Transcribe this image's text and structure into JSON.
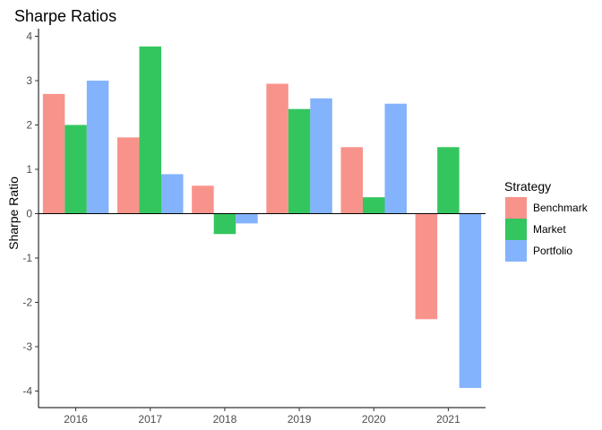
{
  "chart_data": {
    "type": "bar",
    "title": "Sharpe Ratios",
    "xlabel": "",
    "ylabel": "Sharpe Ratio",
    "categories": [
      "2016",
      "2017",
      "2018",
      "2019",
      "2020",
      "2021"
    ],
    "series": [
      {
        "name": "Benchmark",
        "color": "#F8938C",
        "values": [
          2.7,
          1.72,
          0.63,
          2.93,
          1.5,
          -2.38
        ]
      },
      {
        "name": "Market",
        "color": "#33C65F",
        "values": [
          2.0,
          3.77,
          -0.46,
          2.36,
          0.37,
          1.5
        ]
      },
      {
        "name": "Portfolio",
        "color": "#83B3FD",
        "values": [
          3.0,
          0.89,
          -0.22,
          2.6,
          2.48,
          -3.93
        ]
      }
    ],
    "ylim": [
      -4.3,
      4.15
    ],
    "yticks": [
      "-4",
      "-3",
      "-2",
      "-1",
      "0",
      "1",
      "2",
      "3",
      "4"
    ],
    "grid": false,
    "legend": {
      "title": "Strategy",
      "position": "right"
    }
  }
}
